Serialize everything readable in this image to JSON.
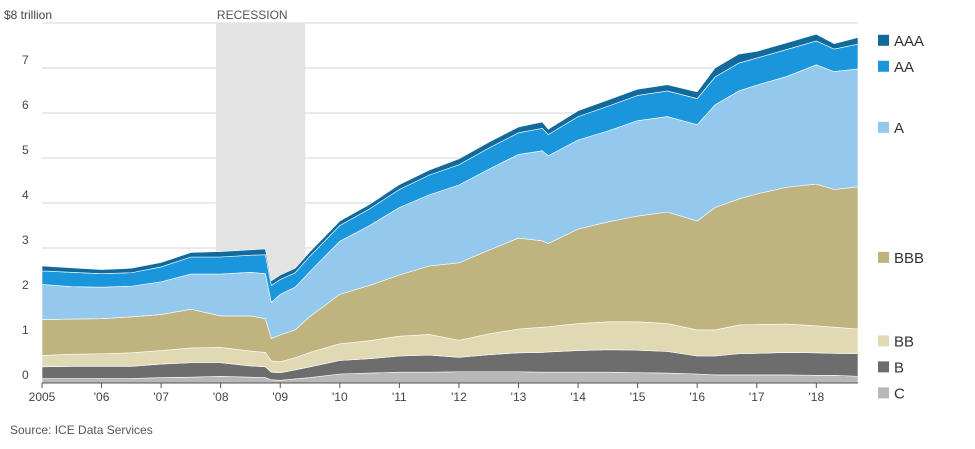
{
  "source_note": "Source: ICE Data Services",
  "chart_data": {
    "type": "area",
    "stacked": true,
    "title": "",
    "xlabel": "",
    "ylabel": "",
    "y_unit_label": "$8 trillion",
    "ylim": [
      0,
      8
    ],
    "y_ticks": [
      0,
      1,
      2,
      3,
      4,
      5,
      6,
      7
    ],
    "y_tick_labels": [
      "0",
      "1",
      "2",
      "3",
      "4",
      "5",
      "6",
      "7"
    ],
    "xlim": [
      2005,
      2018.7
    ],
    "x_ticks": [
      2005,
      2006,
      2007,
      2008,
      2009,
      2010,
      2011,
      2012,
      2013,
      2014,
      2015,
      2016,
      2017,
      2018
    ],
    "x_tick_labels": [
      "2005",
      "'06",
      "'07",
      "'08",
      "'09",
      "'10",
      "'11",
      "'12",
      "'13",
      "'14",
      "'15",
      "'16",
      "'17",
      "'18"
    ],
    "grid": true,
    "legend_placement": "right, aligned with series",
    "recession": {
      "label": "RECESSION",
      "start": 2007.92,
      "end": 2009.42,
      "color": "#e3e3e3"
    },
    "x": [
      2005,
      2005.5,
      2006,
      2006.5,
      2007,
      2007.5,
      2008,
      2008.5,
      2008.75,
      2008.85,
      2009,
      2009.25,
      2009.5,
      2010,
      2010.5,
      2011,
      2011.5,
      2012,
      2012.5,
      2013,
      2013.4,
      2013.5,
      2014,
      2014.5,
      2015,
      2015.5,
      2016,
      2016.3,
      2016.7,
      2017,
      2017.5,
      2018,
      2018.3,
      2018.7
    ],
    "series": [
      {
        "name": "C",
        "color": "#b8b8b8",
        "values": [
          0.1,
          0.1,
          0.1,
          0.1,
          0.12,
          0.13,
          0.15,
          0.13,
          0.12,
          0.07,
          0.06,
          0.09,
          0.12,
          0.2,
          0.22,
          0.24,
          0.24,
          0.25,
          0.25,
          0.25,
          0.24,
          0.24,
          0.24,
          0.24,
          0.23,
          0.22,
          0.2,
          0.18,
          0.18,
          0.18,
          0.18,
          0.17,
          0.17,
          0.15
        ]
      },
      {
        "name": "B",
        "color": "#6d6d6d",
        "values": [
          0.26,
          0.27,
          0.27,
          0.27,
          0.3,
          0.32,
          0.3,
          0.25,
          0.24,
          0.17,
          0.17,
          0.2,
          0.24,
          0.3,
          0.32,
          0.36,
          0.38,
          0.32,
          0.38,
          0.42,
          0.44,
          0.45,
          0.48,
          0.5,
          0.5,
          0.48,
          0.4,
          0.42,
          0.47,
          0.48,
          0.5,
          0.5,
          0.49,
          0.5
        ]
      },
      {
        "name": "BB",
        "color": "#e0d9b3",
        "values": [
          0.25,
          0.27,
          0.28,
          0.3,
          0.3,
          0.33,
          0.34,
          0.33,
          0.32,
          0.25,
          0.24,
          0.27,
          0.32,
          0.37,
          0.4,
          0.44,
          0.46,
          0.38,
          0.46,
          0.53,
          0.56,
          0.56,
          0.6,
          0.62,
          0.63,
          0.62,
          0.58,
          0.58,
          0.64,
          0.64,
          0.63,
          0.6,
          0.58,
          0.55
        ]
      },
      {
        "name": "BBB",
        "color": "#bfb480",
        "values": [
          0.8,
          0.78,
          0.78,
          0.8,
          0.8,
          0.86,
          0.7,
          0.78,
          0.75,
          0.5,
          0.6,
          0.62,
          0.8,
          1.1,
          1.23,
          1.36,
          1.52,
          1.72,
          1.86,
          2.02,
          1.92,
          1.85,
          2.1,
          2.22,
          2.35,
          2.48,
          2.42,
          2.72,
          2.8,
          2.9,
          3.04,
          3.15,
          3.06,
          3.16
        ]
      },
      {
        "name": "A",
        "color": "#94c8ec",
        "values": [
          0.78,
          0.72,
          0.7,
          0.68,
          0.73,
          0.78,
          0.93,
          0.97,
          1.0,
          0.8,
          0.9,
          0.95,
          1.0,
          1.18,
          1.33,
          1.5,
          1.58,
          1.73,
          1.8,
          1.86,
          2.0,
          1.95,
          1.98,
          2.02,
          2.12,
          2.12,
          2.14,
          2.28,
          2.4,
          2.42,
          2.46,
          2.65,
          2.62,
          2.62
        ]
      },
      {
        "name": "AA",
        "color": "#1a97dc",
        "values": [
          0.3,
          0.32,
          0.3,
          0.3,
          0.33,
          0.38,
          0.38,
          0.38,
          0.42,
          0.38,
          0.33,
          0.32,
          0.34,
          0.35,
          0.37,
          0.4,
          0.44,
          0.45,
          0.47,
          0.48,
          0.5,
          0.47,
          0.52,
          0.55,
          0.56,
          0.57,
          0.58,
          0.62,
          0.62,
          0.6,
          0.6,
          0.53,
          0.5,
          0.55
        ]
      },
      {
        "name": "AAA",
        "color": "#12699c",
        "values": [
          0.11,
          0.1,
          0.09,
          0.1,
          0.1,
          0.1,
          0.12,
          0.12,
          0.13,
          0.1,
          0.1,
          0.1,
          0.1,
          0.1,
          0.1,
          0.11,
          0.11,
          0.13,
          0.13,
          0.13,
          0.14,
          0.12,
          0.13,
          0.14,
          0.14,
          0.14,
          0.15,
          0.2,
          0.2,
          0.15,
          0.15,
          0.15,
          0.12,
          0.15
        ]
      }
    ]
  }
}
